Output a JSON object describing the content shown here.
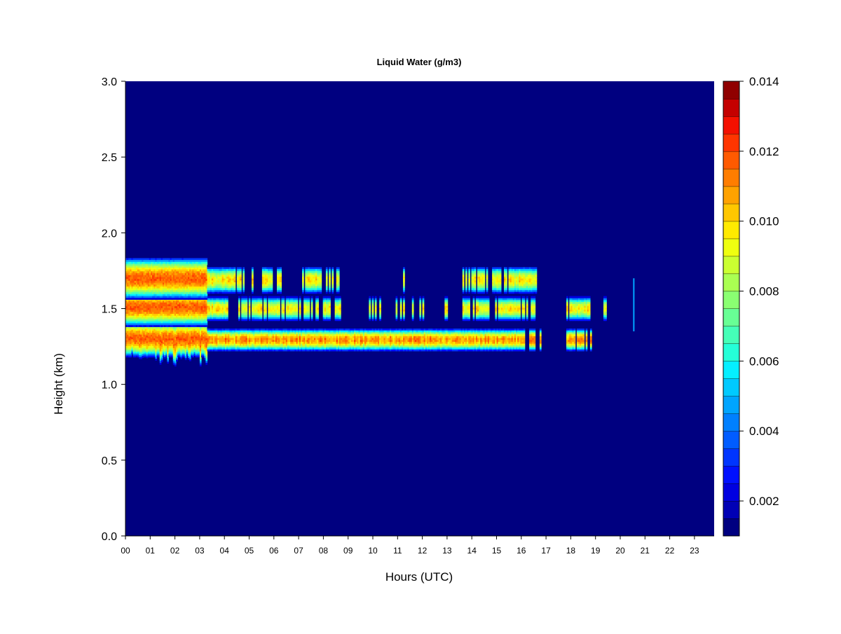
{
  "chart_data": {
    "type": "heatmap",
    "title": "Liquid Water (g/m3)",
    "xlabel": "Hours (UTC)",
    "ylabel": "Height (km)",
    "xlim": [
      0,
      24
    ],
    "ylim": [
      0.0,
      3.0
    ],
    "x_ticks": [
      "00",
      "01",
      "02",
      "03",
      "04",
      "05",
      "06",
      "07",
      "08",
      "09",
      "10",
      "11",
      "12",
      "13",
      "14",
      "15",
      "16",
      "17",
      "18",
      "19",
      "20",
      "21",
      "22",
      "23"
    ],
    "y_ticks": [
      "0.0",
      "0.5",
      "1.0",
      "1.5",
      "2.0",
      "2.5",
      "3.0"
    ],
    "colorbar": {
      "min": 0.001,
      "max": 0.014,
      "levels": 26,
      "ticks": [
        "0.002",
        "0.004",
        "0.006",
        "0.008",
        "0.010",
        "0.012",
        "0.014"
      ],
      "colors": [
        "#000080",
        "#0000b5",
        "#0000e0",
        "#0010ff",
        "#0035ff",
        "#005cff",
        "#0080ff",
        "#00a5ff",
        "#00caff",
        "#05efff",
        "#25ffd8",
        "#45ffb8",
        "#68ff95",
        "#8aff72",
        "#aaff52",
        "#cbff31",
        "#efff10",
        "#ffea00",
        "#ffc700",
        "#ffa200",
        "#ff7d00",
        "#ff5a00",
        "#ff3500",
        "#f41000",
        "#c40000",
        "#900000"
      ]
    },
    "background_color": "#000080",
    "cloud_layers": [
      {
        "name": "lower",
        "start_h": 0.0,
        "end_h": 18.8,
        "base_km": 1.22,
        "top_km": 1.37,
        "peak": 0.0125
      },
      {
        "name": "middle",
        "start_h": 0.0,
        "end_h": 19.4,
        "base_km": 1.42,
        "top_km": 1.58,
        "peak": 0.011
      },
      {
        "name": "upper",
        "start_h": 0.0,
        "end_h": 16.6,
        "base_km": 1.6,
        "top_km": 1.78,
        "peak": 0.011
      }
    ]
  }
}
